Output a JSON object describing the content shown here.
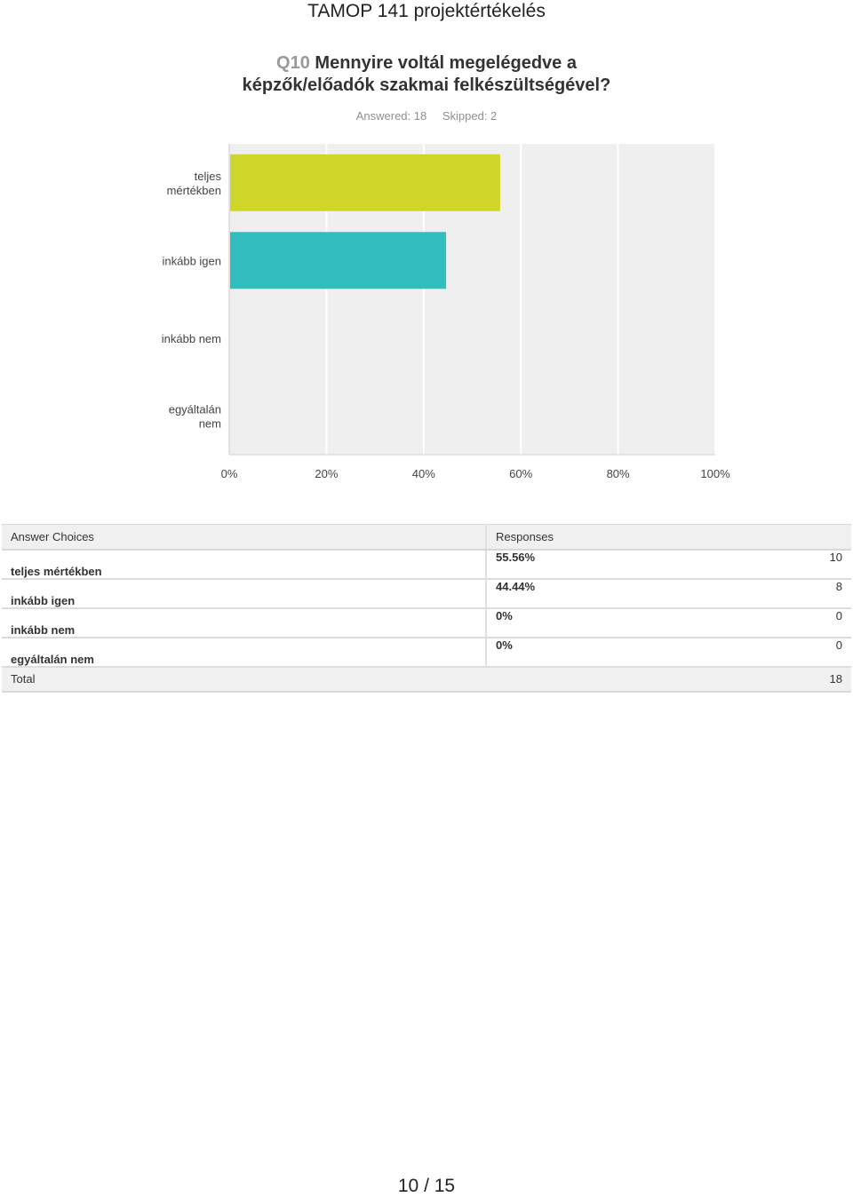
{
  "header": {
    "title": "TAMOP 141 projektértékelés"
  },
  "question": {
    "number": "Q10",
    "line1": "Mennyire voltál megelégedve a",
    "line2": "képzők/előadók szakmai felkészültségével?"
  },
  "stats": {
    "answered": "Answered: 18",
    "skipped": "Skipped: 2"
  },
  "chart_data": {
    "type": "bar",
    "orientation": "horizontal",
    "categories": [
      [
        "teljes",
        "mértékben"
      ],
      [
        "inkább igen"
      ],
      [
        "inkább nem"
      ],
      [
        "egyáltalán",
        "nem"
      ]
    ],
    "values": [
      55.56,
      44.44,
      0,
      0
    ],
    "xlim": [
      0,
      100
    ],
    "xticks": [
      "0%",
      "20%",
      "40%",
      "60%",
      "80%",
      "100%"
    ],
    "colors": [
      "#cfd62a",
      "#33bdbf",
      "#8a8a8a",
      "#8a8a8a"
    ],
    "grid": true,
    "background": "#efefef"
  },
  "table": {
    "headers": [
      "Answer Choices",
      "Responses"
    ],
    "rows": [
      {
        "choice": "teljes mértékben",
        "percent": "55.56%",
        "count": "10"
      },
      {
        "choice": "inkább igen",
        "percent": "44.44%",
        "count": "8"
      },
      {
        "choice": "inkább nem",
        "percent": "0%",
        "count": "0"
      },
      {
        "choice": "egyáltalán nem",
        "percent": "0%",
        "count": "0"
      }
    ],
    "total_label": "Total",
    "total_value": "18"
  },
  "footer": {
    "page": "10 / 15"
  }
}
